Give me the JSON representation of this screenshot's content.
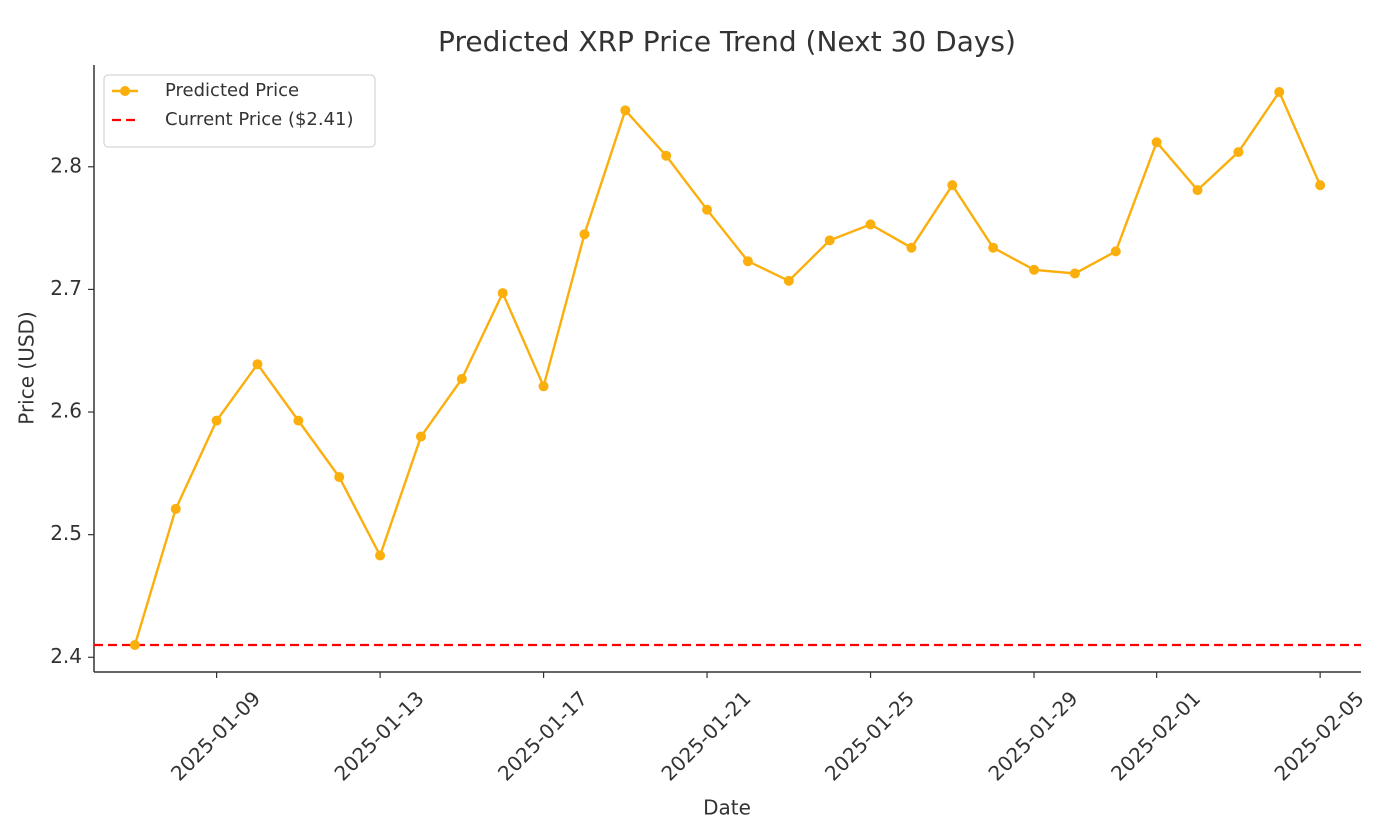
{
  "chart_data": {
    "type": "line",
    "title": "Predicted XRP Price Trend (Next 30 Days)",
    "x_label": "Date",
    "y_label": "Price (USD)",
    "x": [
      "2025-01-07",
      "2025-01-08",
      "2025-01-09",
      "2025-01-10",
      "2025-01-11",
      "2025-01-12",
      "2025-01-13",
      "2025-01-14",
      "2025-01-15",
      "2025-01-16",
      "2025-01-17",
      "2025-01-18",
      "2025-01-19",
      "2025-01-20",
      "2025-01-21",
      "2025-01-22",
      "2025-01-23",
      "2025-01-24",
      "2025-01-25",
      "2025-01-26",
      "2025-01-27",
      "2025-01-28",
      "2025-01-29",
      "2025-01-30",
      "2025-01-31",
      "2025-02-01",
      "2025-02-02",
      "2025-02-03",
      "2025-02-04",
      "2025-02-05"
    ],
    "series": [
      {
        "name": "Predicted Price",
        "color": "#fbaf0d",
        "values": [
          2.41,
          2.521,
          2.593,
          2.639,
          2.593,
          2.547,
          2.483,
          2.58,
          2.627,
          2.697,
          2.621,
          2.745,
          2.846,
          2.809,
          2.765,
          2.723,
          2.707,
          2.74,
          2.753,
          2.734,
          2.785,
          2.734,
          2.716,
          2.713,
          2.731,
          2.82,
          2.781,
          2.812,
          2.861,
          2.785
        ]
      }
    ],
    "hlines": [
      {
        "name": "Current Price ($2.41)",
        "value": 2.41,
        "color": "#ff0000",
        "style": "dashed"
      }
    ],
    "xlim": [
      "2025-01-06",
      "2025-02-06"
    ],
    "xticks": [
      "2025-01-09",
      "2025-01-13",
      "2025-01-17",
      "2025-01-21",
      "2025-01-25",
      "2025-01-29",
      "2025-02-01",
      "2025-02-05"
    ],
    "ylim": [
      2.388,
      2.883
    ],
    "yticks": [
      2.4,
      2.5,
      2.6,
      2.7,
      2.8
    ],
    "grid": false,
    "legend": "upper-left"
  }
}
